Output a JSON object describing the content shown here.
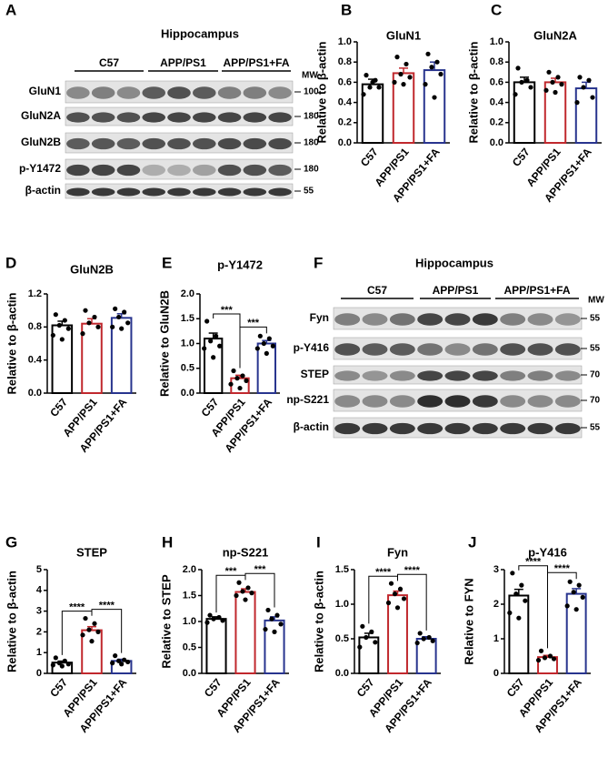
{
  "blots": [
    {
      "panel_label": "A",
      "title": "Hippocampus",
      "groups": [
        "C57",
        "APP/PS1",
        "APP/PS1+FA"
      ],
      "mw_header": "MW",
      "rows": [
        {
          "name": "GluN1",
          "mw": 100
        },
        {
          "name": "GluN2A",
          "mw": 180
        },
        {
          "name": "GluN2B",
          "mw": 180
        },
        {
          "name": "p-Y1472",
          "mw": 180
        },
        {
          "name": "β-actin",
          "mw": 55
        }
      ]
    },
    {
      "panel_label": "F",
      "title": "Hippocampus",
      "groups": [
        "C57",
        "APP/PS1",
        "APP/PS1+FA"
      ],
      "mw_header": "MW",
      "rows": [
        {
          "name": "Fyn",
          "mw": 55
        },
        {
          "name": "p-Y416",
          "mw": 55
        },
        {
          "name": "STEP",
          "mw": 70
        },
        {
          "name": "np-S221",
          "mw": 70
        },
        {
          "name": "β-actin",
          "mw": 55
        }
      ]
    }
  ],
  "chart_data": [
    {
      "type": "bar",
      "panel_label": "B",
      "title": "GluN1",
      "ylabel": "Relative to β-actin",
      "categories": [
        "C57",
        "APP/PS1",
        "APP/PS1+FA"
      ],
      "colors": [
        "#000000",
        "#c0282d",
        "#28348e"
      ],
      "values": [
        0.58,
        0.69,
        0.72
      ],
      "errors": [
        0.05,
        0.05,
        0.08
      ],
      "points": [
        [
          0.67,
          0.62,
          0.55,
          0.55,
          0.48,
          0.6
        ],
        [
          0.85,
          0.78,
          0.68,
          0.65,
          0.6,
          0.58
        ],
        [
          0.88,
          0.8,
          0.75,
          0.68,
          0.58,
          0.45
        ]
      ],
      "ylim": [
        0,
        1
      ],
      "yticks": [
        {
          "value": 0,
          "label": "0.0"
        },
        0.2,
        0.4,
        0.6,
        0.8,
        {
          "value": 1,
          "label": "1.0"
        }
      ],
      "significance": []
    },
    {
      "type": "bar",
      "panel_label": "C",
      "title": "GluN2A",
      "ylabel": "Relative to β-actin",
      "categories": [
        "C57",
        "APP/PS1",
        "APP/PS1+FA"
      ],
      "colors": [
        "#000000",
        "#c0282d",
        "#28348e"
      ],
      "values": [
        0.6,
        0.6,
        0.54
      ],
      "errors": [
        0.05,
        0.04,
        0.06
      ],
      "points": [
        [
          0.74,
          0.62,
          0.6,
          0.55,
          0.48
        ],
        [
          0.7,
          0.65,
          0.6,
          0.58,
          0.52,
          0.5
        ],
        [
          0.65,
          0.62,
          0.55,
          0.45,
          0.4
        ]
      ],
      "ylim": [
        0,
        1
      ],
      "yticks": [
        {
          "value": 0,
          "label": "0.0"
        },
        0.2,
        0.4,
        0.6,
        0.8,
        {
          "value": 1,
          "label": "1.0"
        }
      ],
      "significance": []
    },
    {
      "type": "bar",
      "panel_label": "D",
      "title": "GluN2B",
      "ylabel": "Relative to β-actin",
      "categories": [
        "C57",
        "APP/PS1",
        "APP/PS1+FA"
      ],
      "colors": [
        "#000000",
        "#c0282d",
        "#28348e"
      ],
      "values": [
        0.82,
        0.84,
        0.91
      ],
      "errors": [
        0.05,
        0.06,
        0.05
      ],
      "points": [
        [
          0.95,
          0.88,
          0.82,
          0.78,
          0.7,
          0.65
        ],
        [
          1.0,
          0.92,
          0.85,
          0.8,
          0.72
        ],
        [
          1.02,
          0.98,
          0.92,
          0.85,
          0.8,
          0.78
        ]
      ],
      "ylim": [
        0,
        1.2
      ],
      "yticks": [
        {
          "value": 0,
          "label": "0.0"
        },
        0.4,
        0.8,
        1.2
      ],
      "significance": []
    },
    {
      "type": "bar",
      "panel_label": "E",
      "title": "p-Y1472",
      "ylabel": "Relative to GluN2B",
      "categories": [
        "C57",
        "APP/PS1",
        "APP/PS1+FA"
      ],
      "colors": [
        "#000000",
        "#c0282d",
        "#28348e"
      ],
      "values": [
        1.1,
        0.3,
        1.0
      ],
      "errors": [
        0.11,
        0.06,
        0.06
      ],
      "points": [
        [
          1.45,
          1.15,
          1.05,
          0.95,
          0.9,
          0.72
        ],
        [
          0.45,
          0.35,
          0.3,
          0.25,
          0.18,
          0.1
        ],
        [
          1.15,
          1.1,
          1.0,
          0.95,
          0.9,
          0.8
        ]
      ],
      "ylim": [
        0,
        2
      ],
      "yticks": [
        {
          "value": 0,
          "label": "0.0"
        },
        0.5,
        {
          "value": 1,
          "label": "1.0"
        },
        1.5,
        {
          "value": 2,
          "label": "2.0"
        }
      ],
      "significance": [
        {
          "between": [
            0,
            1
          ],
          "label": "***"
        },
        {
          "between": [
            1,
            2
          ],
          "label": "***"
        }
      ]
    },
    {
      "type": "bar",
      "panel_label": "G",
      "title": "STEP",
      "ylabel": "Relative to β-actin",
      "categories": [
        "C57",
        "APP/PS1",
        "APP/PS1+FA"
      ],
      "colors": [
        "#000000",
        "#c0282d",
        "#28348e"
      ],
      "values": [
        0.52,
        2.08,
        0.6
      ],
      "errors": [
        0.07,
        0.17,
        0.08
      ],
      "points": [
        [
          0.75,
          0.6,
          0.5,
          0.45,
          0.4,
          0.35
        ],
        [
          2.65,
          2.4,
          2.1,
          2.0,
          1.85,
          1.55
        ],
        [
          0.85,
          0.65,
          0.6,
          0.55,
          0.5,
          0.45
        ]
      ],
      "ylim": [
        0,
        5
      ],
      "yticks": [
        0,
        1,
        2,
        3,
        4,
        5
      ],
      "significance": [
        {
          "between": [
            0,
            1
          ],
          "label": "****"
        },
        {
          "between": [
            1,
            2
          ],
          "label": "****"
        }
      ]
    },
    {
      "type": "bar",
      "panel_label": "H",
      "title": "np-S221",
      "ylabel": "Relative to STEP",
      "categories": [
        "C57",
        "APP/PS1",
        "APP/PS1+FA"
      ],
      "colors": [
        "#000000",
        "#c0282d",
        "#28348e"
      ],
      "values": [
        1.05,
        1.57,
        1.02
      ],
      "errors": [
        0.04,
        0.06,
        0.07
      ],
      "points": [
        [
          1.12,
          1.08,
          1.05,
          1.02,
          0.98
        ],
        [
          1.75,
          1.65,
          1.58,
          1.55,
          1.5,
          1.42
        ],
        [
          1.22,
          1.12,
          1.05,
          0.95,
          0.85,
          0.8
        ]
      ],
      "ylim": [
        0,
        2
      ],
      "yticks": [
        {
          "value": 0,
          "label": "0.0"
        },
        0.5,
        {
          "value": 1,
          "label": "1.0"
        },
        1.5,
        {
          "value": 2,
          "label": "2.0"
        }
      ],
      "significance": [
        {
          "between": [
            0,
            1
          ],
          "label": "***"
        },
        {
          "between": [
            1,
            2
          ],
          "label": "***"
        }
      ]
    },
    {
      "type": "bar",
      "panel_label": "I",
      "title": "Fyn",
      "ylabel": "Relative to β-actin",
      "categories": [
        "C57",
        "APP/PS1",
        "APP/PS1+FA"
      ],
      "colors": [
        "#000000",
        "#c0282d",
        "#28348e"
      ],
      "values": [
        0.52,
        1.13,
        0.5
      ],
      "errors": [
        0.06,
        0.06,
        0.03
      ],
      "points": [
        [
          0.68,
          0.6,
          0.52,
          0.45,
          0.38
        ],
        [
          1.3,
          1.22,
          1.15,
          1.08,
          1.02,
          0.95
        ],
        [
          0.58,
          0.52,
          0.5,
          0.47,
          0.44
        ]
      ],
      "ylim": [
        0,
        1.5
      ],
      "yticks": [
        {
          "value": 0,
          "label": "0.0"
        },
        0.5,
        {
          "value": 1,
          "label": "1.0"
        },
        1.5
      ],
      "significance": [
        {
          "between": [
            0,
            1
          ],
          "label": "****"
        },
        {
          "between": [
            1,
            2
          ],
          "label": "****"
        }
      ]
    },
    {
      "type": "bar",
      "panel_label": "J",
      "title": "p-Y416",
      "ylabel": "Relative to FYN",
      "categories": [
        "C57",
        "APP/PS1",
        "APP/PS1+FA"
      ],
      "colors": [
        "#000000",
        "#c0282d",
        "#28348e"
      ],
      "values": [
        2.25,
        0.47,
        2.3
      ],
      "errors": [
        0.18,
        0.05,
        0.15
      ],
      "points": [
        [
          2.9,
          2.55,
          2.3,
          2.1,
          1.75,
          1.6
        ],
        [
          0.65,
          0.5,
          0.45,
          0.42,
          0.38
        ],
        [
          2.65,
          2.55,
          2.35,
          2.2,
          1.95,
          1.85
        ]
      ],
      "ylim": [
        0,
        3
      ],
      "yticks": [
        0,
        1,
        2,
        3
      ],
      "significance": [
        {
          "between": [
            0,
            1
          ],
          "label": "****"
        },
        {
          "between": [
            1,
            2
          ],
          "label": "****"
        }
      ]
    }
  ]
}
